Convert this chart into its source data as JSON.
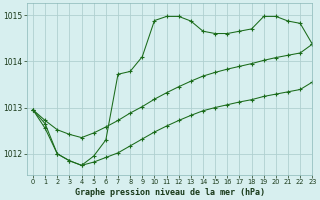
{
  "title": "Graphe pression niveau de la mer (hPa)",
  "bg_color": "#d7efef",
  "grid_color": "#b0d0d0",
  "line_color": "#1a6b1a",
  "xlim": [
    -0.5,
    23
  ],
  "ylim": [
    1011.55,
    1015.25
  ],
  "yticks": [
    1012,
    1013,
    1014,
    1015
  ],
  "xticks": [
    0,
    1,
    2,
    3,
    4,
    5,
    6,
    7,
    8,
    9,
    10,
    11,
    12,
    13,
    14,
    15,
    16,
    17,
    18,
    19,
    20,
    21,
    22,
    23
  ],
  "y_main": [
    1012.95,
    1012.65,
    1012.0,
    1011.85,
    1011.75,
    1011.95,
    1012.3,
    1013.72,
    1013.78,
    1014.1,
    1014.88,
    1014.97,
    1014.97,
    1014.87,
    1014.65,
    1014.6,
    1014.6,
    1014.65,
    1014.7,
    1014.97,
    1014.97,
    1014.87,
    1014.82,
    1014.37
  ],
  "y_diag_upper": [
    1012.95,
    1012.72,
    1012.52,
    1012.42,
    1012.35,
    1012.45,
    1012.58,
    1012.72,
    1012.88,
    1013.02,
    1013.18,
    1013.32,
    1013.45,
    1013.57,
    1013.68,
    1013.76,
    1013.83,
    1013.89,
    1013.95,
    1014.02,
    1014.08,
    1014.13,
    1014.18,
    1014.37
  ],
  "y_diag_lower": [
    1012.95,
    1012.55,
    1012.0,
    1011.85,
    1011.75,
    1011.82,
    1011.92,
    1012.02,
    1012.17,
    1012.32,
    1012.47,
    1012.6,
    1012.72,
    1012.83,
    1012.93,
    1013.0,
    1013.06,
    1013.12,
    1013.17,
    1013.24,
    1013.29,
    1013.34,
    1013.39,
    1013.55
  ]
}
